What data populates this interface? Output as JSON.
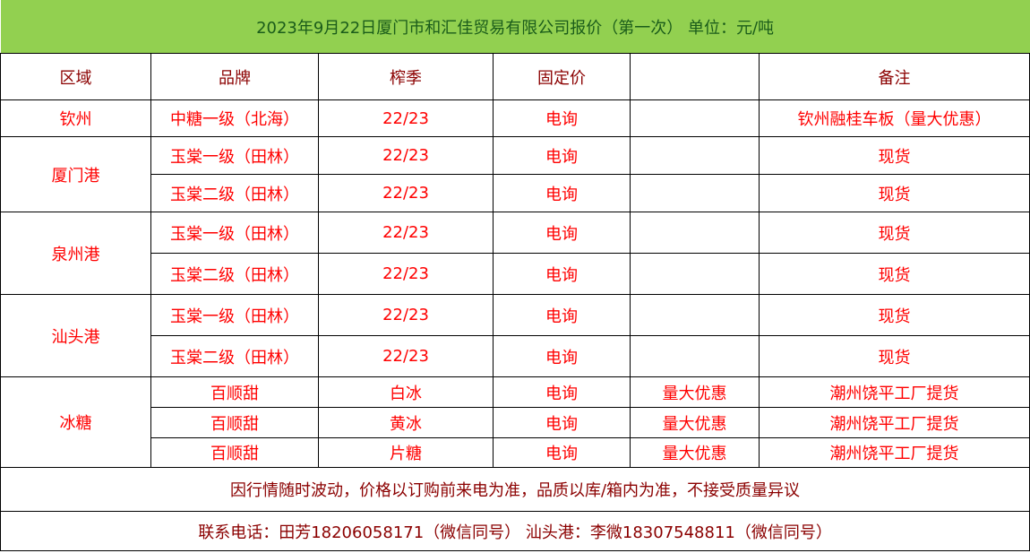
{
  "title": "2023年9月22日厦门市和汇佳贸易有限公司报价（第一次）   单位：元/吨",
  "headers": [
    "区域",
    "品牌",
    "榨季",
    "固定价",
    "",
    "备注"
  ],
  "groups": [
    {
      "region": "钦州",
      "rows": [
        [
          "中糖一级（北海）",
          "22/23",
          "电询",
          "",
          "钦州融桂车板（量大优惠）"
        ]
      ]
    },
    {
      "region": "厦门港",
      "rows": [
        [
          "玉棠一级（田林）",
          "22/23",
          "电询",
          "",
          "现货"
        ],
        [
          "玉棠二级（田林）",
          "22/23",
          "电询",
          "",
          "现货"
        ]
      ]
    },
    {
      "region": "泉州港",
      "rows": [
        [
          "玉棠一级（田林）",
          "22/23",
          "电询",
          "",
          "现货"
        ],
        [
          "玉棠二级（田林）",
          "22/23",
          "电询",
          "",
          "现货"
        ]
      ]
    },
    {
      "region": "汕头港",
      "rows": [
        [
          "玉棠一级（田林）",
          "22/23",
          "电询",
          "",
          "现货"
        ],
        [
          "玉棠二级（田林）",
          "22/23",
          "电询",
          "",
          "现货"
        ]
      ]
    },
    {
      "region": "冰糖",
      "rows": [
        [
          "百顺甜",
          "白冰",
          "电询",
          "量大优惠",
          "潮州饶平工厂提货"
        ],
        [
          "百顺甜",
          "黄冰",
          "电询",
          "量大优惠",
          "潮州饶平工厂提货"
        ],
        [
          "百顺甜",
          "片糖",
          "电询",
          "量大优惠",
          "潮州饶平工厂提货"
        ]
      ]
    }
  ],
  "notice": "因行情随时波动，价格以订购前来电为准，品质以库/箱内为准，不接受质量异议",
  "contact": "联系电话：田芳18206058171（微信同号）    汕头港：李微18307548811（微信同号）",
  "colors": {
    "title_bg": "#92d050",
    "title_text": "#1a5c1a",
    "header_text": "#8b0000",
    "data_text": "#ff0000"
  }
}
